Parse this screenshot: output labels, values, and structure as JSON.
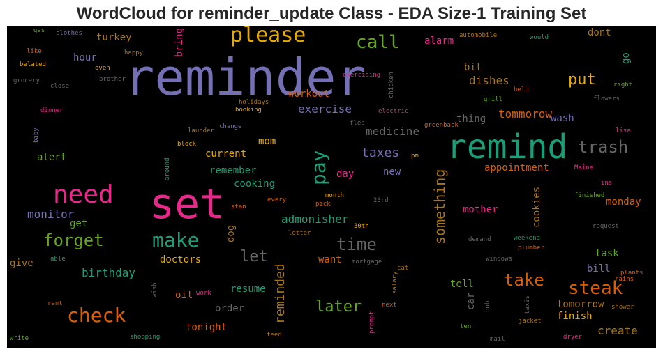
{
  "chart_data": {
    "type": "wordcloud",
    "title": "WordCloud for reminder_update Class - EDA Size-1 Training Set",
    "words": [
      {
        "text": "reminder",
        "color": "#7570b3"
      },
      {
        "text": "set",
        "color": "#e7298a"
      },
      {
        "text": "remind",
        "color": "#1b9e77"
      },
      {
        "text": "please",
        "color": "#e6ab02"
      },
      {
        "text": "need",
        "color": "#e7298a"
      },
      {
        "text": "check",
        "color": "#d95f02"
      },
      {
        "text": "make",
        "color": "#1b9e77"
      },
      {
        "text": "pay",
        "color": "#1b9e77"
      },
      {
        "text": "call",
        "color": "#66a61e"
      },
      {
        "text": "steak",
        "color": "#d95f02"
      },
      {
        "text": "forget",
        "color": "#66a61e"
      },
      {
        "text": "trash",
        "color": "#666666"
      },
      {
        "text": "time",
        "color": "#666666"
      },
      {
        "text": "take",
        "color": "#d95f02"
      },
      {
        "text": "put",
        "color": "#e6ab02"
      },
      {
        "text": "later",
        "color": "#66a61e"
      },
      {
        "text": "let",
        "color": "#666666"
      },
      {
        "text": "something",
        "color": "#a6761d"
      },
      {
        "text": "reminded",
        "color": "#a6761d"
      },
      {
        "text": "taxes",
        "color": "#7570b3"
      },
      {
        "text": "monitor",
        "color": "#7570b3"
      },
      {
        "text": "exercise",
        "color": "#7570b3"
      },
      {
        "text": "medicine",
        "color": "#666666"
      },
      {
        "text": "tommorow",
        "color": "#d95f02"
      },
      {
        "text": "admonisher",
        "color": "#1b9e77"
      },
      {
        "text": "birthday",
        "color": "#1b9e77"
      },
      {
        "text": "dishes",
        "color": "#a6761d"
      },
      {
        "text": "create",
        "color": "#a6761d"
      },
      {
        "text": "appointment",
        "color": "#d95f02"
      },
      {
        "text": "turkey",
        "color": "#a6761d"
      },
      {
        "text": "dont",
        "color": "#a6761d"
      },
      {
        "text": "workout",
        "color": "#d95f02"
      },
      {
        "text": "hour",
        "color": "#7570b3"
      },
      {
        "text": "alarm",
        "color": "#e7298a"
      },
      {
        "text": "alert",
        "color": "#66a61e"
      },
      {
        "text": "current",
        "color": "#e6ab02"
      },
      {
        "text": "remember",
        "color": "#1b9e77"
      },
      {
        "text": "cooking",
        "color": "#1b9e77"
      },
      {
        "text": "doctors",
        "color": "#e6ab02"
      },
      {
        "text": "resume",
        "color": "#1b9e77"
      },
      {
        "text": "order",
        "color": "#666666"
      },
      {
        "text": "tonight",
        "color": "#d95f02"
      },
      {
        "text": "give",
        "color": "#a6761d"
      },
      {
        "text": "oil",
        "color": "#d95f02"
      },
      {
        "text": "want",
        "color": "#d95f02"
      },
      {
        "text": "tell",
        "color": "#66a61e"
      },
      {
        "text": "bill",
        "color": "#7570b3"
      },
      {
        "text": "task",
        "color": "#66a61e"
      },
      {
        "text": "finish",
        "color": "#e6ab02"
      },
      {
        "text": "tomorrow",
        "color": "#a6761d"
      },
      {
        "text": "monday",
        "color": "#d95f02"
      },
      {
        "text": "mother",
        "color": "#e7298a"
      },
      {
        "text": "thing",
        "color": "#666666"
      },
      {
        "text": "wash",
        "color": "#7570b3"
      },
      {
        "text": "bit",
        "color": "#a6761d"
      },
      {
        "text": "mom",
        "color": "#e6ab02"
      },
      {
        "text": "day",
        "color": "#e7298a"
      },
      {
        "text": "new",
        "color": "#7570b3"
      },
      {
        "text": "get",
        "color": "#66a61e"
      },
      {
        "text": "cookies",
        "color": "#a6761d"
      },
      {
        "text": "car",
        "color": "#666666"
      },
      {
        "text": "dog",
        "color": "#a6761d"
      },
      {
        "text": "bring",
        "color": "#e7298a"
      },
      {
        "text": "go",
        "color": "#1b9e77"
      },
      {
        "text": "gas",
        "color": "#66a61e"
      },
      {
        "text": "clothes",
        "color": "#7570b3"
      },
      {
        "text": "like",
        "color": "#d95f02"
      },
      {
        "text": "happy",
        "color": "#a6761d"
      },
      {
        "text": "belated",
        "color": "#e6ab02"
      },
      {
        "text": "oven",
        "color": "#e6ab02"
      },
      {
        "text": "grocery",
        "color": "#666666"
      },
      {
        "text": "close",
        "color": "#666666"
      },
      {
        "text": "brother",
        "color": "#666666"
      },
      {
        "text": "exercising",
        "color": "#e7298a"
      },
      {
        "text": "chicken",
        "color": "#666666"
      },
      {
        "text": "automobile",
        "color": "#a6761d"
      },
      {
        "text": "would",
        "color": "#1b9e77"
      },
      {
        "text": "help",
        "color": "#d95f02"
      },
      {
        "text": "grill",
        "color": "#66a61e"
      },
      {
        "text": "right",
        "color": "#66a61e"
      },
      {
        "text": "flowers",
        "color": "#666666"
      },
      {
        "text": "dinner",
        "color": "#e7298a"
      },
      {
        "text": "holidays",
        "color": "#a6761d"
      },
      {
        "text": "booking",
        "color": "#e6ab02"
      },
      {
        "text": "electric",
        "color": "#e7298a"
      },
      {
        "text": "flea",
        "color": "#666666"
      },
      {
        "text": "greenback",
        "color": "#d95f02"
      },
      {
        "text": "lisa",
        "color": "#e7298a"
      },
      {
        "text": "baby",
        "color": "#7570b3"
      },
      {
        "text": "launder",
        "color": "#a6761d"
      },
      {
        "text": "change",
        "color": "#7570b3"
      },
      {
        "text": "block",
        "color": "#e6ab02"
      },
      {
        "text": "around",
        "color": "#1b9e77"
      },
      {
        "text": "pm",
        "color": "#e6ab02"
      },
      {
        "text": "Maine",
        "color": "#e7298a"
      },
      {
        "text": "ins",
        "color": "#e7298a"
      },
      {
        "text": "finished",
        "color": "#66a61e"
      },
      {
        "text": "month",
        "color": "#e6ab02"
      },
      {
        "text": "stan",
        "color": "#d95f02"
      },
      {
        "text": "every",
        "color": "#d95f02"
      },
      {
        "text": "pick",
        "color": "#d95f02"
      },
      {
        "text": "23rd",
        "color": "#666666"
      },
      {
        "text": "letter",
        "color": "#a6761d"
      },
      {
        "text": "30th",
        "color": "#e6ab02"
      },
      {
        "text": "request",
        "color": "#666666"
      },
      {
        "text": "demand",
        "color": "#666666"
      },
      {
        "text": "weekend",
        "color": "#1b9e77"
      },
      {
        "text": "plumber",
        "color": "#d95f02"
      },
      {
        "text": "windows",
        "color": "#666666"
      },
      {
        "text": "able",
        "color": "#1b9e77"
      },
      {
        "text": "mortgage",
        "color": "#666666"
      },
      {
        "text": "cat",
        "color": "#a6761d"
      },
      {
        "text": "salary",
        "color": "#a6761d"
      },
      {
        "text": "plants",
        "color": "#d95f02"
      },
      {
        "text": "rains",
        "color": "#d95f02"
      },
      {
        "text": "wish",
        "color": "#666666"
      },
      {
        "text": "work",
        "color": "#e7298a"
      },
      {
        "text": "rent",
        "color": "#d95f02"
      },
      {
        "text": "next",
        "color": "#d95f02"
      },
      {
        "text": "prompt",
        "color": "#e7298a"
      },
      {
        "text": "bob",
        "color": "#666666"
      },
      {
        "text": "taxis",
        "color": "#666666"
      },
      {
        "text": "shower",
        "color": "#a6761d"
      },
      {
        "text": "ten",
        "color": "#66a61e"
      },
      {
        "text": "jacket",
        "color": "#a6761d"
      },
      {
        "text": "write",
        "color": "#66a61e"
      },
      {
        "text": "shopping",
        "color": "#1b9e77"
      },
      {
        "text": "feed",
        "color": "#a6761d"
      },
      {
        "text": "mail",
        "color": "#666666"
      },
      {
        "text": "dryer",
        "color": "#e7298a"
      }
    ]
  }
}
